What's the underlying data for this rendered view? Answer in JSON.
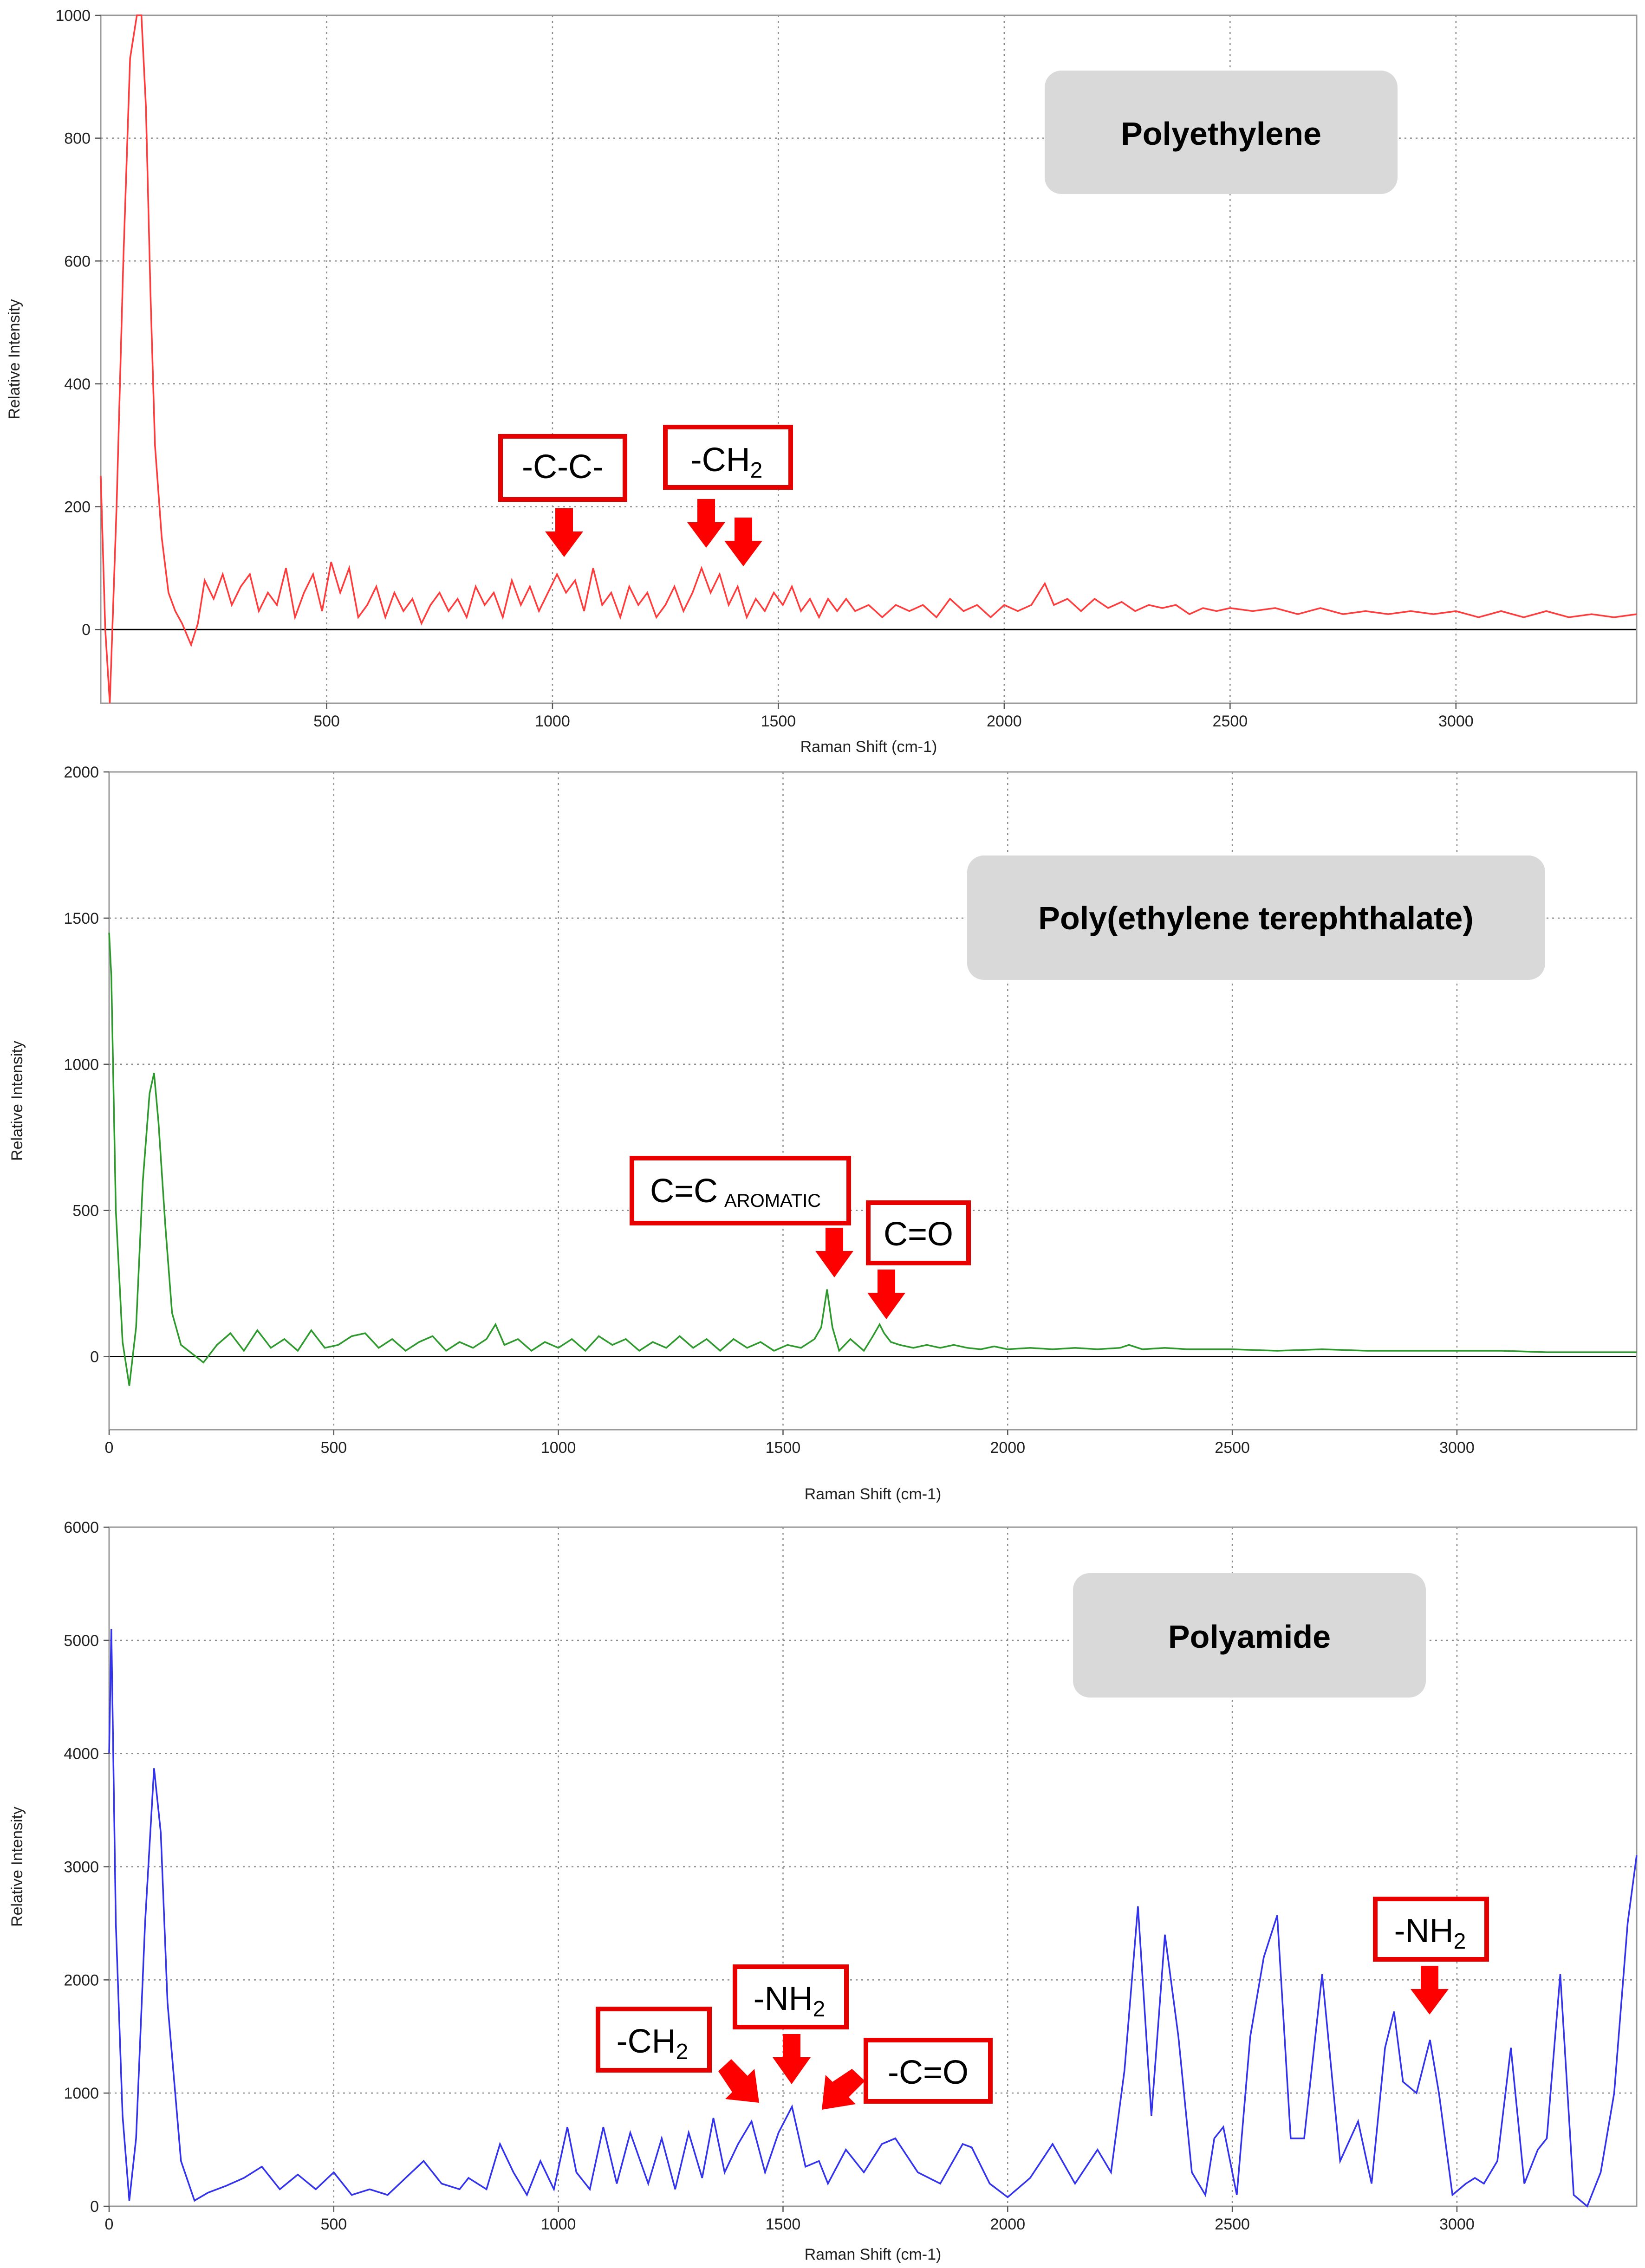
{
  "chart_data": [
    {
      "type": "line",
      "title": "Polyethylene",
      "xlabel": "Raman Shift (cm-1)",
      "ylabel": "Relative Intensity",
      "xlim": [
        0,
        3400
      ],
      "ylim": [
        -120,
        1000
      ],
      "xticks": [
        500,
        1000,
        1500,
        2000,
        2500,
        3000
      ],
      "yticks": [
        0,
        200,
        400,
        600,
        800,
        1000
      ],
      "grid": true,
      "color": "#ff3b3b",
      "series": [
        {
          "x": [
            0,
            10,
            20,
            35,
            50,
            65,
            80,
            90,
            100,
            110,
            120,
            135,
            150,
            165,
            180,
            200,
            215,
            230,
            250,
            270,
            290,
            310,
            330,
            350,
            370,
            390,
            410,
            430,
            450,
            470,
            490,
            510,
            530,
            550,
            570,
            590,
            610,
            630,
            650,
            670,
            690,
            710,
            730,
            750,
            770,
            790,
            810,
            830,
            850,
            870,
            890,
            910,
            930,
            950,
            970,
            990,
            1010,
            1030,
            1050,
            1070,
            1090,
            1110,
            1130,
            1150,
            1170,
            1190,
            1210,
            1230,
            1250,
            1270,
            1290,
            1310,
            1330,
            1350,
            1370,
            1390,
            1410,
            1430,
            1450,
            1470,
            1490,
            1510,
            1530,
            1550,
            1570,
            1590,
            1610,
            1630,
            1650,
            1670,
            1700,
            1730,
            1760,
            1790,
            1820,
            1850,
            1880,
            1910,
            1940,
            1970,
            2000,
            2030,
            2060,
            2090,
            2110,
            2140,
            2170,
            2200,
            2230,
            2260,
            2290,
            2320,
            2350,
            2380,
            2410,
            2440,
            2470,
            2500,
            2550,
            2600,
            2650,
            2700,
            2750,
            2800,
            2850,
            2900,
            2950,
            3000,
            3050,
            3100,
            3150,
            3200,
            3250,
            3300,
            3350,
            3400
          ],
          "values": [
            250,
            0,
            -120,
            200,
            600,
            930,
            1000,
            1000,
            850,
            550,
            300,
            150,
            60,
            30,
            10,
            -25,
            10,
            80,
            50,
            90,
            40,
            70,
            90,
            30,
            60,
            40,
            100,
            20,
            60,
            90,
            30,
            110,
            60,
            100,
            20,
            40,
            70,
            20,
            60,
            30,
            50,
            10,
            40,
            60,
            30,
            50,
            20,
            70,
            40,
            60,
            20,
            80,
            40,
            70,
            30,
            60,
            90,
            60,
            80,
            30,
            100,
            40,
            60,
            20,
            70,
            40,
            60,
            20,
            40,
            70,
            30,
            60,
            100,
            60,
            90,
            40,
            70,
            20,
            50,
            30,
            60,
            40,
            70,
            30,
            50,
            20,
            50,
            30,
            50,
            30,
            40,
            20,
            40,
            30,
            40,
            20,
            50,
            30,
            40,
            20,
            40,
            30,
            40,
            75,
            40,
            50,
            30,
            50,
            35,
            45,
            30,
            40,
            35,
            40,
            25,
            35,
            30,
            35,
            30,
            35,
            25,
            35,
            25,
            30,
            25,
            30,
            25,
            30,
            20,
            30,
            20,
            30,
            20,
            25,
            20,
            25
          ]
        }
      ],
      "annotations": [
        {
          "text": "-C-C-",
          "sub": ""
        },
        {
          "text": "-CH",
          "sub": "2"
        }
      ]
    },
    {
      "type": "line",
      "title": "Poly(ethylene terephthalate)",
      "xlabel": "Raman Shift (cm-1)",
      "ylabel": "Relative Intensity",
      "xlim": [
        0,
        3400
      ],
      "ylim": [
        -250,
        2000
      ],
      "xticks": [
        0,
        500,
        1000,
        1500,
        2000,
        2500,
        3000
      ],
      "yticks": [
        0,
        500,
        1000,
        1500,
        2000
      ],
      "grid": true,
      "color": "#2e9a2e",
      "series": [
        {
          "x": [
            0,
            5,
            15,
            30,
            45,
            60,
            75,
            90,
            100,
            110,
            125,
            140,
            160,
            185,
            210,
            240,
            270,
            300,
            330,
            360,
            390,
            420,
            450,
            480,
            510,
            540,
            570,
            600,
            630,
            660,
            690,
            720,
            750,
            780,
            810,
            840,
            860,
            880,
            910,
            940,
            970,
            1000,
            1030,
            1060,
            1090,
            1120,
            1150,
            1180,
            1210,
            1240,
            1270,
            1300,
            1330,
            1360,
            1390,
            1420,
            1450,
            1480,
            1510,
            1540,
            1570,
            1585,
            1598,
            1610,
            1625,
            1650,
            1680,
            1700,
            1715,
            1725,
            1740,
            1760,
            1790,
            1820,
            1850,
            1880,
            1910,
            1940,
            1970,
            2000,
            2050,
            2100,
            2150,
            2200,
            2250,
            2270,
            2300,
            2350,
            2400,
            2500,
            2600,
            2700,
            2800,
            2900,
            3000,
            3100,
            3200,
            3300,
            3400
          ],
          "values": [
            1450,
            1300,
            500,
            50,
            -100,
            100,
            600,
            900,
            970,
            800,
            450,
            150,
            40,
            10,
            -20,
            40,
            80,
            20,
            90,
            30,
            60,
            20,
            90,
            30,
            40,
            70,
            80,
            30,
            60,
            20,
            50,
            70,
            20,
            50,
            30,
            60,
            110,
            40,
            60,
            20,
            50,
            30,
            60,
            20,
            70,
            40,
            60,
            20,
            50,
            30,
            70,
            30,
            60,
            20,
            60,
            30,
            50,
            20,
            40,
            30,
            60,
            100,
            230,
            100,
            20,
            60,
            20,
            70,
            110,
            80,
            50,
            40,
            30,
            40,
            30,
            40,
            30,
            25,
            35,
            25,
            30,
            25,
            30,
            25,
            30,
            40,
            25,
            30,
            25,
            25,
            20,
            25,
            20,
            20,
            20,
            20,
            15,
            15,
            15
          ]
        }
      ],
      "annotations": [
        {
          "text": "C=C",
          "sub": "AROMATIC"
        },
        {
          "text": "C=O",
          "sub": ""
        }
      ]
    },
    {
      "type": "line",
      "title": "Polyamide",
      "xlabel": "Raman Shift (cm-1)",
      "ylabel": "Relative Intensity",
      "xlim": [
        0,
        3400
      ],
      "ylim": [
        0,
        6000
      ],
      "xticks": [
        0,
        500,
        1000,
        1500,
        2000,
        2500,
        3000
      ],
      "yticks": [
        0,
        1000,
        2000,
        3000,
        4000,
        5000,
        6000
      ],
      "grid": true,
      "color": "#3333ee",
      "series": [
        {
          "x": [
            0,
            5,
            15,
            30,
            45,
            60,
            80,
            100,
            115,
            130,
            160,
            190,
            220,
            260,
            300,
            340,
            380,
            420,
            460,
            500,
            540,
            580,
            620,
            660,
            700,
            740,
            780,
            800,
            840,
            870,
            900,
            930,
            960,
            990,
            1020,
            1040,
            1070,
            1100,
            1130,
            1160,
            1200,
            1230,
            1260,
            1290,
            1320,
            1345,
            1370,
            1400,
            1430,
            1460,
            1490,
            1520,
            1550,
            1580,
            1600,
            1640,
            1680,
            1720,
            1750,
            1800,
            1850,
            1900,
            1920,
            1960,
            2000,
            2050,
            2100,
            2150,
            2200,
            2230,
            2260,
            2290,
            2320,
            2350,
            2380,
            2410,
            2440,
            2460,
            2480,
            2510,
            2540,
            2570,
            2600,
            2630,
            2660,
            2700,
            2740,
            2780,
            2810,
            2840,
            2860,
            2880,
            2910,
            2940,
            2960,
            2990,
            3020,
            3040,
            3060,
            3090,
            3120,
            3150,
            3180,
            3200,
            3230,
            3260,
            3290,
            3320,
            3350,
            3380,
            3400
          ],
          "values": [
            4000,
            5100,
            2500,
            800,
            50,
            600,
            2500,
            3870,
            3300,
            1800,
            400,
            50,
            120,
            180,
            250,
            350,
            150,
            280,
            150,
            300,
            100,
            150,
            100,
            250,
            400,
            200,
            150,
            250,
            150,
            550,
            300,
            100,
            400,
            150,
            700,
            300,
            150,
            700,
            200,
            650,
            200,
            600,
            150,
            650,
            250,
            780,
            300,
            550,
            750,
            300,
            650,
            880,
            350,
            400,
            200,
            500,
            300,
            550,
            600,
            300,
            200,
            550,
            520,
            200,
            80,
            250,
            550,
            200,
            500,
            300,
            1200,
            2650,
            800,
            2400,
            1500,
            300,
            100,
            600,
            700,
            100,
            1500,
            2200,
            2570,
            600,
            600,
            2050,
            400,
            750,
            200,
            1400,
            1720,
            1100,
            1000,
            1470,
            1000,
            100,
            200,
            250,
            200,
            400,
            1400,
            200,
            500,
            600,
            2050,
            100,
            0,
            300,
            1000,
            2500,
            3100
          ]
        }
      ],
      "annotations": [
        {
          "text": "-CH",
          "sub": "2"
        },
        {
          "text": "-NH",
          "sub": "2"
        },
        {
          "text": "-C=O",
          "sub": ""
        },
        {
          "text": "-NH",
          "sub": "2"
        }
      ]
    }
  ]
}
